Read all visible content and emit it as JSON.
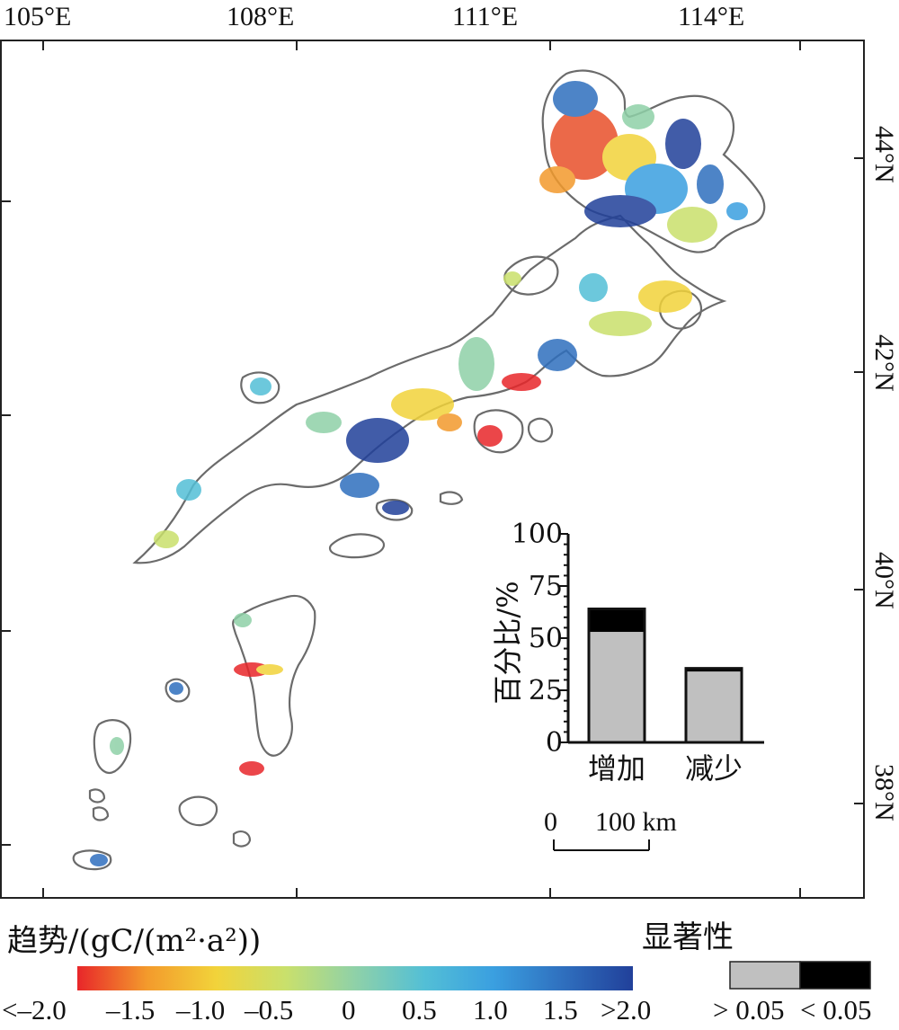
{
  "map": {
    "lon_labels": [
      "105°E",
      "108°E",
      "111°E",
      "114°E"
    ],
    "lat_labels": [
      "44°N",
      "42°N",
      "40°N",
      "38°N"
    ]
  },
  "chart_data": {
    "type": "bar",
    "stacked": true,
    "categories": [
      "增加",
      "减少"
    ],
    "series": [
      {
        "name": "> 0.05",
        "values": [
          53,
          34
        ]
      },
      {
        "name": "< 0.05",
        "values": [
          11,
          1.5
        ]
      }
    ],
    "ylabel": "百分比/%",
    "ylim": [
      0,
      100
    ],
    "yticks": [
      "0",
      "25",
      "50",
      "75",
      "100"
    ]
  },
  "scale_bar": {
    "zero": "0",
    "label": "100 km"
  },
  "trend_legend": {
    "title": "趋势/(gC/(m²·a²))",
    "ticks": [
      "<–2.0",
      "–1.5",
      "–1.0",
      "–0.5",
      "0",
      "0.5",
      "1.0",
      "1.5",
      ">2.0"
    ],
    "colors": [
      "#e8262a",
      "#f39a2c",
      "#f2d33a",
      "#c9e06c",
      "#8fd1a8",
      "#53bfd6",
      "#3a9fe0",
      "#2f6fbe",
      "#21409a"
    ]
  },
  "significance_legend": {
    "title": "显著性",
    "items": [
      {
        "label": "> 0.05",
        "color": "#c0c0c0"
      },
      {
        "label": "< 0.05",
        "color": "#000000"
      }
    ]
  }
}
